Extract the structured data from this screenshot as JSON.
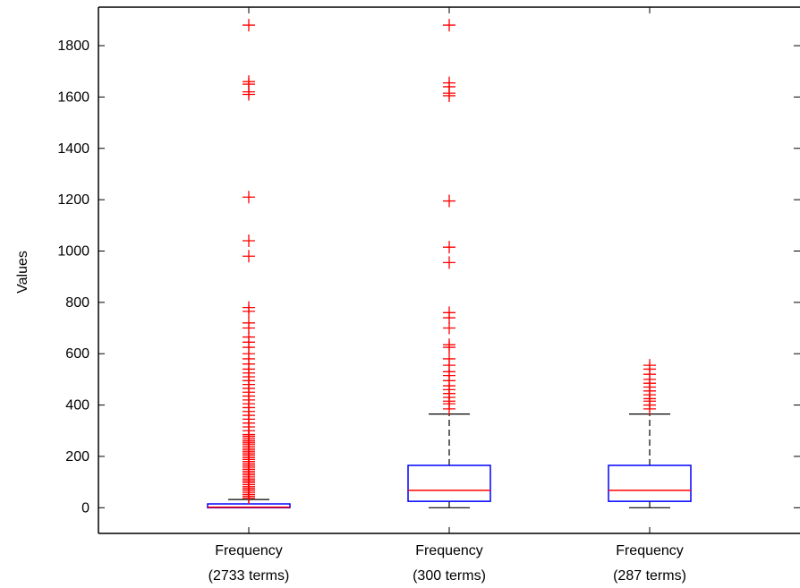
{
  "chart_data": {
    "type": "boxplot",
    "ylabel": "Values",
    "ylim": [
      -100,
      1950
    ],
    "yticks": [
      0,
      200,
      400,
      600,
      800,
      1000,
      1200,
      1400,
      1600,
      1800
    ],
    "grid": false,
    "categories": [
      [
        "Frequency",
        "(2733 terms)"
      ],
      [
        "Frequency",
        "(300 terms)"
      ],
      [
        "Frequency",
        "(287 terms)"
      ]
    ],
    "colors": {
      "box": "#0000ff",
      "median": "#ff0000",
      "whisker": "#000000",
      "outlier": "#ff0000"
    },
    "boxes": [
      {
        "q1": 0,
        "median": 2,
        "q3": 15,
        "whisker_low": 0,
        "whisker_high": 32,
        "outliers": [
          38,
          45,
          52,
          60,
          68,
          75,
          82,
          90,
          98,
          105,
          112,
          120,
          128,
          135,
          142,
          150,
          158,
          165,
          172,
          180,
          188,
          195,
          203,
          210,
          218,
          225,
          232,
          240,
          248,
          255,
          262,
          270,
          278,
          285,
          300,
          315,
          330,
          345,
          360,
          375,
          390,
          405,
          420,
          435,
          450,
          465,
          480,
          495,
          510,
          525,
          540,
          560,
          580,
          600,
          625,
          645,
          665,
          700,
          720,
          765,
          780,
          980,
          1040,
          1210,
          1610,
          1620,
          1650,
          1660,
          1880
        ]
      },
      {
        "q1": 25,
        "median": 68,
        "q3": 165,
        "whisker_low": 0,
        "whisker_high": 365,
        "outliers": [
          385,
          405,
          415,
          430,
          445,
          460,
          475,
          495,
          515,
          530,
          555,
          580,
          625,
          635,
          700,
          740,
          760,
          955,
          1015,
          1195,
          1605,
          1615,
          1640,
          1655,
          1880
        ]
      },
      {
        "q1": 25,
        "median": 68,
        "q3": 165,
        "whisker_low": 0,
        "whisker_high": 365,
        "outliers": [
          385,
          400,
          415,
          425,
          440,
          455,
          470,
          485,
          500,
          520,
          540,
          555
        ]
      }
    ]
  }
}
